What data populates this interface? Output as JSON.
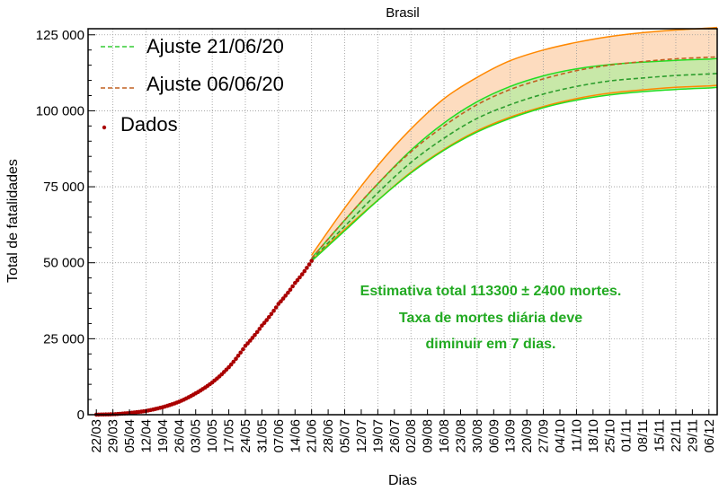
{
  "chart_data": {
    "type": "line",
    "title": "Brasil",
    "xlabel": "Dias",
    "ylabel": "Total de fatalidades",
    "ylim": [
      0,
      127000
    ],
    "x_tick_labels": [
      "22/03",
      "29/03",
      "05/04",
      "12/04",
      "19/04",
      "26/04",
      "03/05",
      "10/05",
      "17/05",
      "24/05",
      "31/05",
      "07/06",
      "14/06",
      "21/06",
      "28/06",
      "05/07",
      "12/07",
      "19/07",
      "26/07",
      "02/08",
      "09/08",
      "16/08",
      "23/08",
      "30/08",
      "06/09",
      "13/09",
      "20/09",
      "27/09",
      "04/10",
      "11/10",
      "18/10",
      "25/10",
      "01/11",
      "08/11",
      "15/11",
      "22/11",
      "29/11",
      "06/12"
    ],
    "y_ticks": [
      0,
      25000,
      50000,
      75000,
      100000,
      125000
    ],
    "y_tick_labels": [
      "0",
      "25 000",
      "50 000",
      "75 000",
      "100 000",
      "125 000"
    ],
    "grid": true,
    "legend": {
      "placement": "top-left",
      "entries": [
        {
          "label": "Ajuste 21/06/20",
          "color": "#33cc33",
          "style": "dashed"
        },
        {
          "label": "Ajuste 06/06/20",
          "color": "#c06020",
          "style": "dashed"
        },
        {
          "label": "Dados",
          "color": "#aa0000",
          "style": "marker"
        }
      ]
    },
    "series": [
      {
        "name": "Ajuste 21/06/20",
        "color": "#2e9e2e",
        "dash": true,
        "x": [
          "21/06",
          "05/07",
          "19/07",
          "02/08",
          "16/08",
          "30/08",
          "13/09",
          "27/09",
          "11/10",
          "25/10",
          "08/11",
          "22/11",
          "06/12",
          "13/12"
        ],
        "values": [
          51000,
          62000,
          73000,
          83000,
          91000,
          97500,
          102000,
          105500,
          108000,
          109800,
          110800,
          111600,
          112100,
          112300
        ],
        "band_upper": [
          51500,
          64000,
          76000,
          87000,
          96000,
          103000,
          108000,
          111500,
          113800,
          115200,
          116000,
          116600,
          117000,
          117200
        ],
        "band_lower": [
          50500,
          60500,
          70500,
          79500,
          87000,
          93000,
          97500,
          101000,
          103500,
          105200,
          106300,
          107000,
          107500,
          107700
        ],
        "band_color": "#c8e8a8",
        "band_edge": "#22dd22"
      },
      {
        "name": "Ajuste 06/06/20",
        "color": "#c06020",
        "dash": true,
        "x": [
          "21/06",
          "05/07",
          "19/07",
          "02/08",
          "16/08",
          "30/08",
          "13/09",
          "27/09",
          "11/10",
          "25/10",
          "08/11",
          "22/11",
          "06/12",
          "13/12"
        ],
        "values": [
          51500,
          64000,
          76000,
          86500,
          95000,
          102000,
          107000,
          110500,
          113200,
          115000,
          116200,
          117100,
          117600,
          117800
        ],
        "band_upper": [
          52500,
          68000,
          82000,
          94000,
          104000,
          111000,
          116500,
          120000,
          122500,
          124400,
          125700,
          126600,
          127200,
          127400
        ],
        "band_lower": [
          50800,
          61000,
          70600,
          79800,
          87300,
          93400,
          97900,
          101400,
          104000,
          105800,
          106900,
          107700,
          108200,
          108400
        ],
        "band_color": "#fddcbf",
        "band_edge": "#ff8800"
      },
      {
        "name": "Dados",
        "color": "#aa0000",
        "marker": true,
        "x": [
          "22/03",
          "29/03",
          "05/04",
          "12/04",
          "19/04",
          "26/04",
          "03/05",
          "10/05",
          "17/05",
          "24/05",
          "31/05",
          "07/06",
          "14/06",
          "21/06"
        ],
        "values": [
          25,
          136,
          553,
          1223,
          2462,
          4271,
          7025,
          10627,
          15633,
          22666,
          29314,
          36455,
          43332,
          50617
        ]
      }
    ],
    "annotations": [
      {
        "text": "Estimativa total 113300 ± 2400 mortes.",
        "color": "#22aa22"
      },
      {
        "text": "Taxa de mortes diária deve",
        "color": "#22aa22"
      },
      {
        "text": "diminuir em 7 dias.",
        "color": "#22aa22"
      }
    ]
  }
}
